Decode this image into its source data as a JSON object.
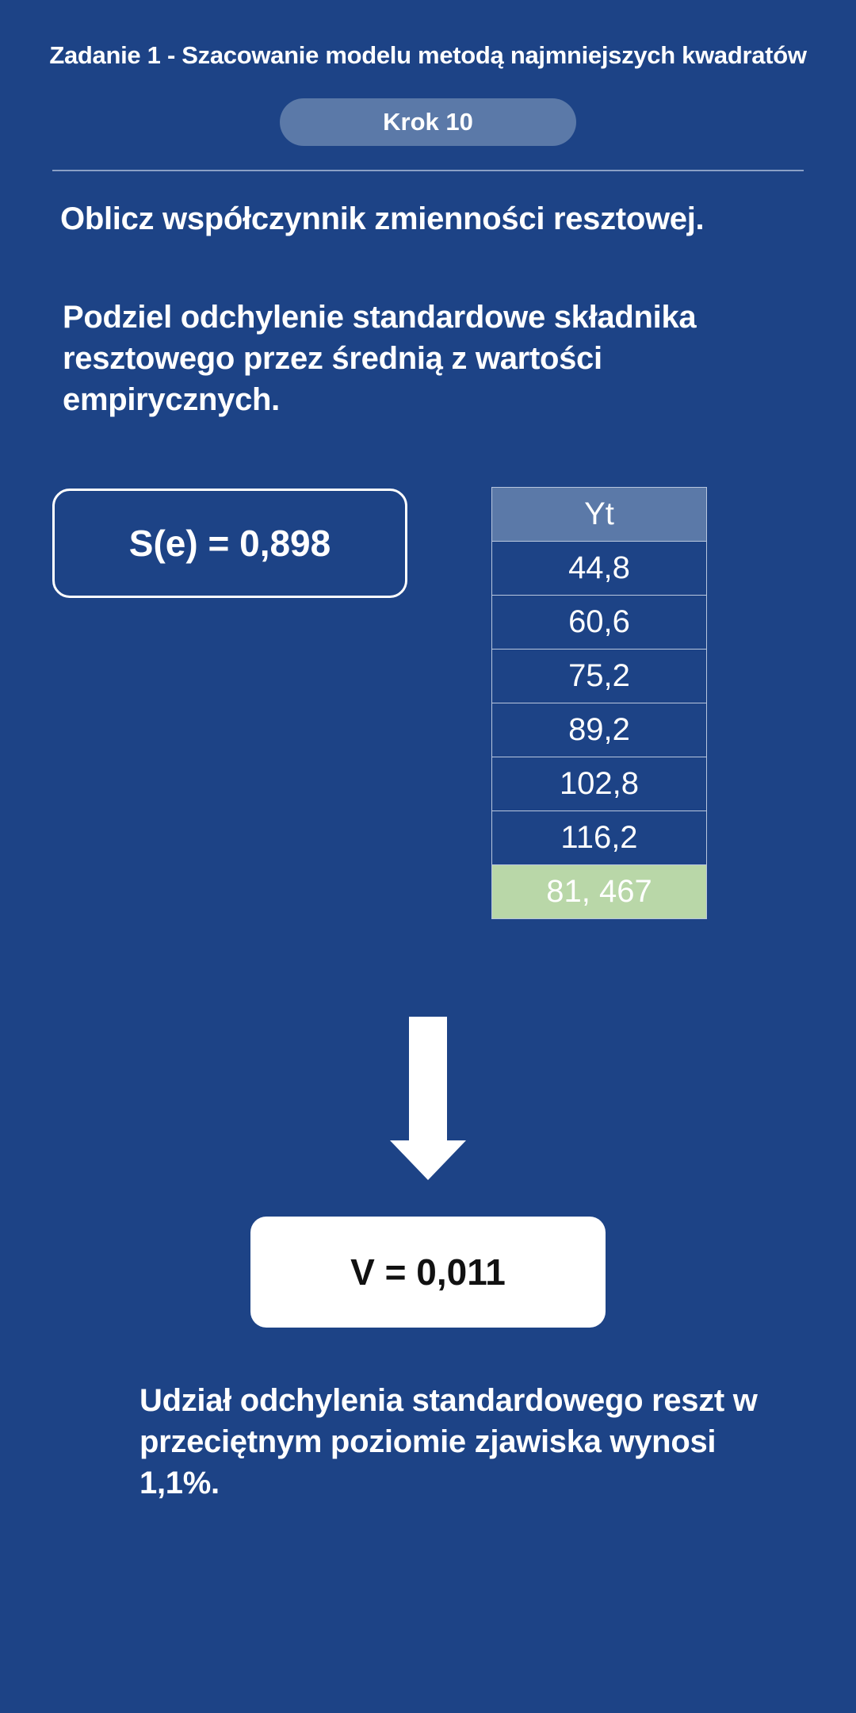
{
  "header": {
    "title": "Zadanie 1 - Szacowanie modelu metodą najmniejszych kwadratów",
    "step_label": "Krok 10"
  },
  "main": {
    "instruction": "Oblicz współczynnik zmienności resztowej.",
    "hint": "Podziel odchylenie standardowe składnika resztowego przez średnią z wartości empirycznych.",
    "se_value": "S(e) = 0,898",
    "table": {
      "header": "Yt",
      "rows": [
        "44,8",
        "60,6",
        "75,2",
        "89,2",
        "102,8",
        "116,2"
      ],
      "mean": "81, 467"
    },
    "arrow_icon": "arrow-down-icon",
    "result": "V = 0,011",
    "conclusion": "Udział odchylenia standardowego reszt w przeciętnym poziomie zjawiska wynosi 1,1%."
  },
  "colors": {
    "background": "#1d4386",
    "pill": "#5b79a8",
    "mean_cell": "#b9d7a8"
  }
}
